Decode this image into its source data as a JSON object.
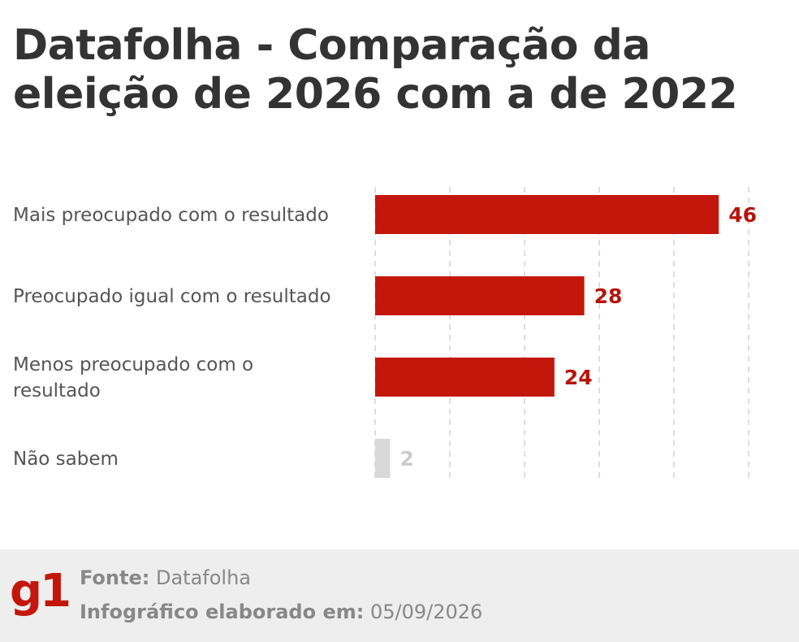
{
  "title": "Datafolha - Comparação da eleição de 2026 com a de 2022",
  "colors": {
    "primary_bar": "#c4170c",
    "muted_bar": "#d8d8d8",
    "primary_label": "#b5150b",
    "muted_label": "#cccccc",
    "gridline": "#d4d4d4",
    "footer_bg": "#eeeeee"
  },
  "chart_data": {
    "type": "bar",
    "orientation": "horizontal",
    "title": "Datafolha - Comparação da eleição de 2026 com a de 2022",
    "categories": [
      "Mais preocupado com o resultado",
      "Preocupado igual com o resultado",
      "Menos preocupado com o resultado",
      "Não sabem"
    ],
    "category_lines": [
      [
        "Mais preocupado com o resultado"
      ],
      [
        "Preocupado igual com o resultado"
      ],
      [
        "Menos preocupado com o",
        "resultado"
      ],
      [
        "Não sabem"
      ]
    ],
    "values": [
      46,
      28,
      24,
      2
    ],
    "value_labels": [
      "46",
      "28",
      "24",
      "2"
    ],
    "highlight": [
      true,
      true,
      true,
      false
    ],
    "xlim": [
      0,
      50
    ],
    "grid": true,
    "grid_values": [
      0,
      10,
      20,
      30,
      40,
      50
    ],
    "xlabel": "",
    "ylabel": ""
  },
  "footer": {
    "logo_text": "g1",
    "source_label": "Fonte:",
    "source_value": "Datafolha",
    "date_label": "Infográfico elaborado em:",
    "date_value": "05/09/2026"
  }
}
